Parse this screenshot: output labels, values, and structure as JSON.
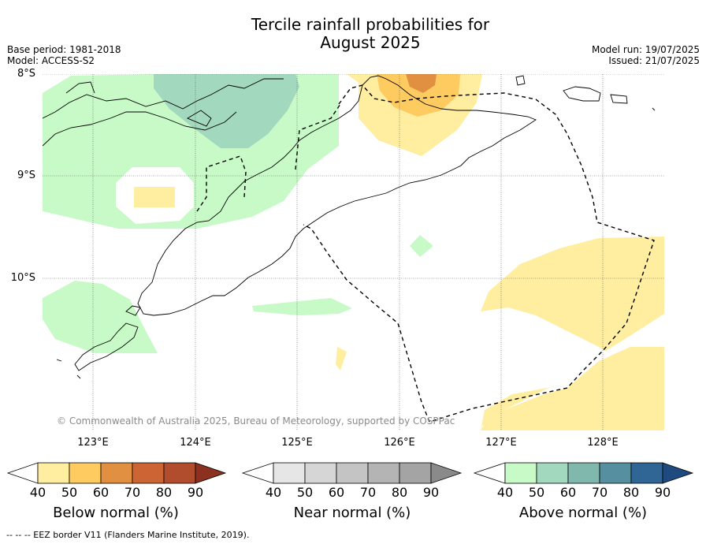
{
  "title": "Tercile rainfall probabilities for August 2025",
  "title_line1": "Tercile rainfall probabilities for",
  "title_line2": "August 2025",
  "base_period": "Base period: 1981-2018",
  "model": "Model: ACCESS-S2",
  "model_run": "Model run: 19/07/2025",
  "issued": "Issued: 21/07/2025",
  "lat_labels": [
    "8°S",
    "9°S",
    "10°S"
  ],
  "lon_labels": [
    "123°E",
    "124°E",
    "125°E",
    "126°E",
    "127°E",
    "128°E"
  ],
  "copyright": "© Commonwealth of Australia 2025, Bureau of Meteorology, supported by COSPPac",
  "colorbars": [
    {
      "name": "below",
      "title": "Below normal (%)",
      "ticks": [
        "40",
        "50",
        "60",
        "70",
        "80",
        "90"
      ],
      "colors": [
        "#ffeda0",
        "#fecb60",
        "#e09040",
        "#cd6434",
        "#b14c2c",
        "#8c3020"
      ]
    },
    {
      "name": "near",
      "title": "Near normal (%)",
      "ticks": [
        "40",
        "50",
        "60",
        "70",
        "80",
        "90"
      ],
      "colors": [
        "#e6e6e6",
        "#d6d6d6",
        "#c4c4c4",
        "#b4b4b4",
        "#a4a4a4",
        "#8a8a8a"
      ]
    },
    {
      "name": "above",
      "title": "Above normal (%)",
      "ticks": [
        "40",
        "50",
        "60",
        "70",
        "80",
        "90"
      ],
      "colors": [
        "#c8fac8",
        "#a2d8bd",
        "#80b8ad",
        "#5690a0",
        "#306696",
        "#1e4a80"
      ]
    }
  ],
  "footnote": "--  --  -- EEZ border V11 (Flanders Marine Institute, 2019).",
  "colors": {
    "below_40_50": "#ffeda0",
    "below_50_60": "#fecb60",
    "below_60_70": "#e09040",
    "above_40_50": "#c8fac8",
    "above_50_60": "#a2d8bd"
  }
}
